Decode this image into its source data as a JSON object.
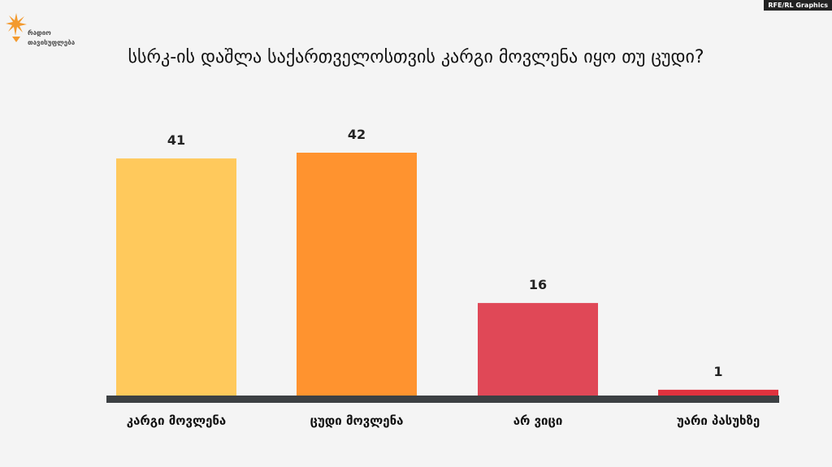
{
  "brand": {
    "logo_line1": "რადიო",
    "logo_line2": "თავისუფლება",
    "credit": "RFE/RL Graphics"
  },
  "chart_data": {
    "type": "bar",
    "title": "სსრკ-ის დაშლა საქართველოსთვის კარგი მოვლენა იყო თუ ცუდი?",
    "categories": [
      "კარგი მოვლენა",
      "ცუდი მოვლენა",
      "არ ვიცი",
      "უარი პასუხზე"
    ],
    "values": [
      41,
      42,
      16,
      1
    ],
    "colors": [
      "#ffc95c",
      "#ff932f",
      "#e04857",
      "#e0323e"
    ],
    "axis_color": "#3c4043",
    "ylim": [
      0,
      42
    ],
    "xlabel": "",
    "ylabel": "",
    "grid": false,
    "legend": "none"
  }
}
